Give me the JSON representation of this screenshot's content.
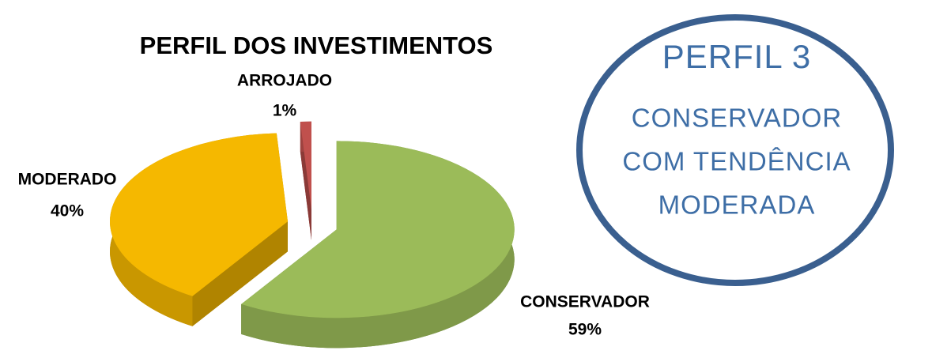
{
  "chart_data": {
    "type": "pie",
    "title": "PERFIL DOS INVESTIMENTOS",
    "categories": [
      "CONSERVADOR",
      "MODERADO",
      "ARROJADO"
    ],
    "values": [
      59,
      40,
      1
    ],
    "value_labels": [
      "59%",
      "40%",
      "1%"
    ],
    "colors": [
      "#9bbb59",
      "#f5b800",
      "#c0504d"
    ]
  },
  "badge": {
    "title": "PERFIL 3",
    "lines": [
      "CONSERVADOR",
      "COM TENDÊNCIA",
      "MODERADA"
    ]
  }
}
